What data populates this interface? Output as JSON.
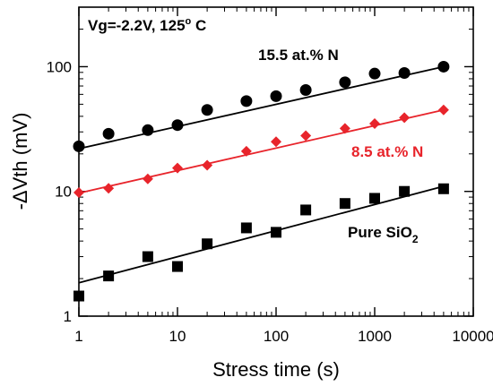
{
  "chart_data": {
    "type": "scatter",
    "title": "",
    "xlabel": "Stress time (s)",
    "ylabel": "-ΔVth (mV)",
    "xscale": "log",
    "yscale": "log",
    "xlim": [
      1,
      10000
    ],
    "ylim": [
      1,
      300
    ],
    "x_ticks": [
      1,
      10,
      100,
      1000,
      10000
    ],
    "x_tick_labels": [
      "1",
      "10",
      "100",
      "1000",
      "10000"
    ],
    "y_ticks": [
      1,
      10,
      100
    ],
    "y_tick_labels": [
      "1",
      "10",
      "100"
    ],
    "grid": false,
    "legend": "none",
    "condition_annotation": {
      "text_before": "Vg=-2.2V, 125",
      "superscript": "o",
      "text_after": " C"
    },
    "series": [
      {
        "name": "15.5 at.% N",
        "color": "#000000",
        "label_color": "#000000",
        "marker": "circle",
        "x": [
          1,
          2,
          5,
          10,
          20,
          50,
          100,
          200,
          500,
          1000,
          2000,
          5000
        ],
        "y": [
          23,
          29,
          31,
          34,
          45,
          53,
          58,
          65,
          75,
          88,
          89,
          100
        ],
        "fit": {
          "x": [
            1,
            5000
          ],
          "y": [
            22,
            100
          ]
        }
      },
      {
        "name": "8.5 at.% N",
        "color": "#e8242b",
        "label_color": "#e8242b",
        "marker": "diamond",
        "x": [
          1,
          2,
          5,
          10,
          20,
          50,
          100,
          200,
          500,
          1000,
          2000,
          5000
        ],
        "y": [
          9.8,
          10.6,
          12.6,
          15.4,
          16.2,
          21,
          25,
          28,
          32,
          35,
          39,
          45
        ],
        "fit": {
          "x": [
            1,
            5000
          ],
          "y": [
            9.7,
            45
          ]
        }
      },
      {
        "name_before": "Pure SiO",
        "name_subscript": "2",
        "color": "#000000",
        "label_color": "#000000",
        "marker": "square",
        "x": [
          1,
          2,
          5,
          10,
          20,
          50,
          100,
          200,
          500,
          1000,
          2000,
          5000
        ],
        "y": [
          1.45,
          2.1,
          3.0,
          2.5,
          3.8,
          5.1,
          4.7,
          7.1,
          8.0,
          8.8,
          10.0,
          10.5
        ],
        "fit": {
          "x": [
            1,
            5000
          ],
          "y": [
            1.85,
            11
          ]
        }
      }
    ]
  }
}
